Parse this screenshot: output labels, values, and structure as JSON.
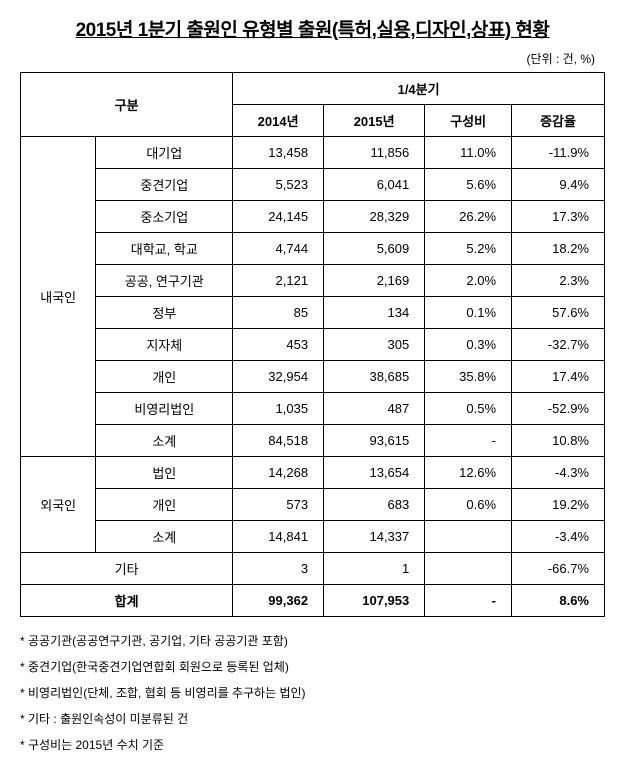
{
  "title": "2015년 1분기 출원인 유형별 출원(특허,실용,디자인,상표) 현황",
  "unit": "(단위 : 건, %)",
  "headers": {
    "category": "구분",
    "quarter": "1/4분기",
    "year2014": "2014년",
    "year2015": "2015년",
    "ratio": "구성비",
    "change": "증감율"
  },
  "groups": {
    "domestic": "내국인",
    "foreign": "외국인",
    "other": "기타",
    "total": "합계"
  },
  "domestic_rows": [
    {
      "label": "대기업",
      "y2014": "13,458",
      "y2015": "11,856",
      "ratio": "11.0%",
      "change": "-11.9%"
    },
    {
      "label": "중견기업",
      "y2014": "5,523",
      "y2015": "6,041",
      "ratio": "5.6%",
      "change": "9.4%"
    },
    {
      "label": "중소기업",
      "y2014": "24,145",
      "y2015": "28,329",
      "ratio": "26.2%",
      "change": "17.3%"
    },
    {
      "label": "대학교, 학교",
      "y2014": "4,744",
      "y2015": "5,609",
      "ratio": "5.2%",
      "change": "18.2%"
    },
    {
      "label": "공공, 연구기관",
      "y2014": "2,121",
      "y2015": "2,169",
      "ratio": "2.0%",
      "change": "2.3%"
    },
    {
      "label": "정부",
      "y2014": "85",
      "y2015": "134",
      "ratio": "0.1%",
      "change": "57.6%"
    },
    {
      "label": "지자체",
      "y2014": "453",
      "y2015": "305",
      "ratio": "0.3%",
      "change": "-32.7%"
    },
    {
      "label": "개인",
      "y2014": "32,954",
      "y2015": "38,685",
      "ratio": "35.8%",
      "change": "17.4%"
    },
    {
      "label": "비영리법인",
      "y2014": "1,035",
      "y2015": "487",
      "ratio": "0.5%",
      "change": "-52.9%"
    },
    {
      "label": "소계",
      "y2014": "84,518",
      "y2015": "93,615",
      "ratio": "-",
      "change": "10.8%"
    }
  ],
  "foreign_rows": [
    {
      "label": "법인",
      "y2014": "14,268",
      "y2015": "13,654",
      "ratio": "12.6%",
      "change": "-4.3%"
    },
    {
      "label": "개인",
      "y2014": "573",
      "y2015": "683",
      "ratio": "0.6%",
      "change": "19.2%"
    },
    {
      "label": "소계",
      "y2014": "14,841",
      "y2015": "14,337",
      "ratio": "",
      "change": "-3.4%"
    }
  ],
  "other_row": {
    "y2014": "3",
    "y2015": "1",
    "ratio": "",
    "change": "-66.7%"
  },
  "total_row": {
    "y2014": "99,362",
    "y2015": "107,953",
    "ratio": "-",
    "change": "8.6%"
  },
  "footnotes": [
    "* 공공기관(공공연구기관, 공기업, 기타 공공기관 포함)",
    "* 중견기업(한국중견기업연합회 회원으로 등록된 업체)",
    "* 비영리법인(단체, 조합, 협회 등 비영리를 추구하는 법인)",
    "* 기타 : 출원인속성이 미분류된 건",
    "* 구성비는 2015년 수치 기준"
  ]
}
